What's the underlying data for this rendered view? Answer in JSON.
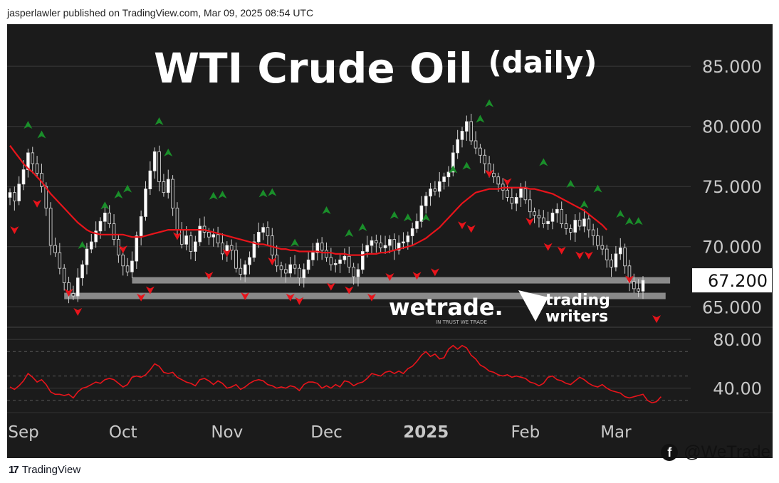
{
  "header": {
    "published": "jasperlawler published on TradingView.com, Mar 09, 2025 08:54 UTC"
  },
  "footer": {
    "brand": "TradingView",
    "handle": "@WeTrade"
  },
  "branding": {
    "wetrade": "wetrade.",
    "wetrade_tagline": "IN TRUST WE TRADE",
    "tw_line1": "trading",
    "tw_line2": "writers"
  },
  "colors": {
    "background": "#1b1b1b",
    "up_candle": "#ffffff",
    "down_candle": "#1b1b1b",
    "wick": "#d0d0d0",
    "moving_average": "#e8141b",
    "rsi_line": "#e8141b",
    "buy_arrow": "#1a8f2a",
    "sell_arrow": "#e8141b",
    "support_band": "#8a8a8a",
    "axis_text": "#c8c8c8"
  },
  "chart_data": {
    "type": "candlestick",
    "title": "WTI Crude Oil",
    "subtitle": "(daily)",
    "price_axis": {
      "ticks": [
        "85.000",
        "80.000",
        "75.000",
        "70.000",
        "65.000"
      ],
      "tick_values": [
        85,
        80,
        75,
        70,
        65
      ],
      "range": [
        63.3,
        88.5
      ]
    },
    "last_price": {
      "label": "67.200",
      "value": 67.2
    },
    "x_labels": [
      {
        "label": "Sep",
        "index": 3,
        "bold": false
      },
      {
        "label": "Oct",
        "index": 25,
        "bold": false
      },
      {
        "label": "Nov",
        "index": 48,
        "bold": false
      },
      {
        "label": "Dec",
        "index": 70,
        "bold": false
      },
      {
        "label": "2025",
        "index": 92,
        "bold": true
      },
      {
        "label": "Feb",
        "index": 114,
        "bold": false
      },
      {
        "label": "Mar",
        "index": 134,
        "bold": false
      }
    ],
    "support_zones": [
      {
        "level": 67.2,
        "from_index": 27,
        "to_index": 146
      },
      {
        "level": 65.9,
        "from_index": 12,
        "to_index": 145
      }
    ],
    "closes": [
      74.5,
      73.8,
      75.2,
      76.4,
      77.8,
      76.9,
      76.1,
      75.0,
      73.2,
      70.1,
      69.5,
      68.2,
      67.0,
      66.1,
      65.9,
      67.4,
      68.5,
      69.8,
      70.4,
      71.3,
      72.1,
      72.8,
      71.9,
      70.6,
      69.3,
      68.4,
      67.9,
      68.8,
      70.9,
      72.5,
      74.8,
      76.3,
      77.9,
      75.4,
      74.5,
      75.6,
      73.2,
      71.4,
      70.2,
      70.9,
      69.6,
      70.4,
      71.7,
      71.2,
      70.8,
      71.0,
      70.3,
      69.4,
      70.1,
      69.7,
      68.2,
      67.7,
      68.5,
      69.1,
      70.4,
      71.2,
      71.6,
      70.9,
      69.3,
      68.4,
      68.1,
      67.8,
      68.5,
      68.2,
      67.4,
      68.1,
      68.9,
      69.5,
      70.3,
      69.7,
      69.1,
      68.5,
      68.6,
      68.9,
      69.2,
      68.3,
      67.5,
      68.1,
      69.6,
      70.1,
      70.5,
      70.3,
      69.9,
      70.1,
      70.6,
      69.7,
      70.3,
      70.4,
      70.9,
      71.5,
      72.1,
      73.4,
      74.2,
      74.8,
      74.6,
      75.4,
      75.8,
      76.2,
      77.8,
      78.9,
      79.6,
      80.4,
      78.8,
      78.2,
      77.6,
      76.9,
      76.1,
      75.8,
      75.2,
      74.7,
      74.1,
      73.6,
      74.1,
      74.8,
      73.9,
      72.9,
      72.6,
      72.4,
      71.9,
      72.1,
      72.8,
      73.1,
      71.9,
      71.5,
      71.2,
      72.2,
      71.7,
      72.3,
      71.4,
      70.9,
      70.1,
      69.8,
      68.9,
      68.3,
      69.4,
      69.9,
      68.4,
      67.1,
      66.5,
      66.3,
      67.2
    ],
    "ma": [
      78.4,
      77.9,
      77.4,
      76.9,
      76.5,
      76.2,
      75.8,
      75.4,
      74.9,
      74.4,
      74.0,
      73.6,
      73.2,
      72.8,
      72.4,
      72.0,
      71.7,
      71.4,
      71.2,
      71.1,
      71.0,
      71.0,
      71.0,
      71.0,
      71.0,
      71.0,
      70.9,
      70.8,
      70.8,
      70.8,
      70.9,
      71.0,
      71.1,
      71.2,
      71.3,
      71.4,
      71.4,
      71.4,
      71.4,
      71.4,
      71.4,
      71.4,
      71.4,
      71.4,
      71.3,
      71.2,
      71.1,
      71.0,
      70.9,
      70.8,
      70.7,
      70.6,
      70.5,
      70.4,
      70.3,
      70.2,
      70.2,
      70.1,
      70.0,
      69.9,
      69.8,
      69.8,
      69.7,
      69.7,
      69.6,
      69.6,
      69.6,
      69.6,
      69.6,
      69.5,
      69.5,
      69.5,
      69.4,
      69.4,
      69.4,
      69.3,
      69.3,
      69.3,
      69.3,
      69.4,
      69.4,
      69.4,
      69.5,
      69.5,
      69.6,
      69.7,
      69.8,
      69.9,
      70.0,
      70.1,
      70.3,
      70.5,
      70.7,
      71.0,
      71.3,
      71.6,
      72.0,
      72.4,
      72.8,
      73.2,
      73.6,
      73.9,
      74.2,
      74.5,
      74.6,
      74.7,
      74.8,
      74.8,
      74.8,
      74.9,
      74.9,
      74.9,
      74.9,
      74.9,
      74.9,
      74.8,
      74.8,
      74.7,
      74.6,
      74.5,
      74.4,
      74.2,
      74.0,
      73.8,
      73.6,
      73.4,
      73.2,
      73.0,
      72.7,
      72.4,
      72.1,
      71.8,
      71.4
    ],
    "buy_signals": [
      {
        "index": 4,
        "price": 80.1
      },
      {
        "index": 7,
        "price": 79.3
      },
      {
        "index": 16,
        "price": 70.1
      },
      {
        "index": 21,
        "price": 73.4
      },
      {
        "index": 24,
        "price": 74.3
      },
      {
        "index": 26,
        "price": 74.8
      },
      {
        "index": 33,
        "price": 80.4
      },
      {
        "index": 35,
        "price": 77.8
      },
      {
        "index": 45,
        "price": 74.2
      },
      {
        "index": 47,
        "price": 74.3
      },
      {
        "index": 56,
        "price": 74.4
      },
      {
        "index": 58,
        "price": 74.5
      },
      {
        "index": 63,
        "price": 70.3
      },
      {
        "index": 70,
        "price": 73.0
      },
      {
        "index": 75,
        "price": 71.1
      },
      {
        "index": 78,
        "price": 71.6
      },
      {
        "index": 85,
        "price": 72.6
      },
      {
        "index": 88,
        "price": 72.4
      },
      {
        "index": 92,
        "price": 72.4
      },
      {
        "index": 98,
        "price": 76.4
      },
      {
        "index": 101,
        "price": 76.7
      },
      {
        "index": 104,
        "price": 80.6
      },
      {
        "index": 106,
        "price": 81.9
      },
      {
        "index": 118,
        "price": 77.0
      },
      {
        "index": 124,
        "price": 75.2
      },
      {
        "index": 127,
        "price": 73.5
      },
      {
        "index": 130,
        "price": 74.8
      },
      {
        "index": 135,
        "price": 72.7
      },
      {
        "index": 137,
        "price": 72.1
      },
      {
        "index": 139,
        "price": 72.1
      }
    ],
    "sell_signals": [
      {
        "index": 1,
        "price": 71.4
      },
      {
        "index": 6,
        "price": 73.6
      },
      {
        "index": 13,
        "price": 66.2
      },
      {
        "index": 15,
        "price": 64.6
      },
      {
        "index": 25,
        "price": 69.8
      },
      {
        "index": 29,
        "price": 65.8
      },
      {
        "index": 31,
        "price": 66.4
      },
      {
        "index": 37,
        "price": 70.9
      },
      {
        "index": 44,
        "price": 67.6
      },
      {
        "index": 48,
        "price": 69.5
      },
      {
        "index": 52,
        "price": 65.9
      },
      {
        "index": 58,
        "price": 68.8
      },
      {
        "index": 62,
        "price": 65.8
      },
      {
        "index": 64,
        "price": 65.5
      },
      {
        "index": 71,
        "price": 66.7
      },
      {
        "index": 75,
        "price": 66.4
      },
      {
        "index": 80,
        "price": 65.8
      },
      {
        "index": 84,
        "price": 67.5
      },
      {
        "index": 90,
        "price": 67.6
      },
      {
        "index": 94,
        "price": 67.9
      },
      {
        "index": 100,
        "price": 71.8
      },
      {
        "index": 102,
        "price": 71.5
      },
      {
        "index": 106,
        "price": 76.1
      },
      {
        "index": 110,
        "price": 75.4
      },
      {
        "index": 115,
        "price": 72.1
      },
      {
        "index": 119,
        "price": 70.0
      },
      {
        "index": 122,
        "price": 69.7
      },
      {
        "index": 126,
        "price": 69.3
      },
      {
        "index": 128,
        "price": 69.3
      },
      {
        "index": 137,
        "price": 67.3
      },
      {
        "index": 143,
        "price": 64.0
      }
    ],
    "rsi": {
      "ticks": [
        "80.00",
        "40.00"
      ],
      "tick_values": [
        80,
        40
      ],
      "range": [
        20,
        90
      ],
      "dashed_levels": [
        30,
        50,
        70
      ],
      "values": [
        41,
        39,
        42,
        46,
        52,
        49,
        45,
        47,
        43,
        37,
        35,
        35,
        34,
        35,
        32,
        37,
        40,
        41,
        43,
        45,
        44,
        47,
        48,
        47,
        44,
        41,
        43,
        49,
        50,
        49,
        51,
        55,
        60,
        58,
        53,
        52,
        53,
        49,
        47,
        45,
        44,
        42,
        47,
        48,
        46,
        43,
        46,
        44,
        40,
        41,
        43,
        39,
        41,
        44,
        46,
        47,
        46,
        43,
        42,
        40,
        41,
        40,
        42,
        41,
        38,
        43,
        45,
        45,
        44,
        40,
        42,
        40,
        43,
        41,
        46,
        45,
        42,
        44,
        45,
        48,
        52,
        51,
        50,
        53,
        54,
        52,
        54,
        52,
        56,
        58,
        62,
        67,
        70,
        66,
        68,
        64,
        65,
        72,
        75,
        72,
        75,
        73,
        67,
        64,
        59,
        57,
        54,
        53,
        51,
        50,
        51,
        49,
        50,
        49,
        48,
        45,
        44,
        42,
        44,
        49,
        50,
        47,
        46,
        44,
        43,
        46,
        49,
        47,
        44,
        42,
        41,
        43,
        40,
        38,
        37,
        36,
        33,
        32,
        33,
        34,
        35,
        30,
        28,
        29,
        33
      ]
    }
  }
}
